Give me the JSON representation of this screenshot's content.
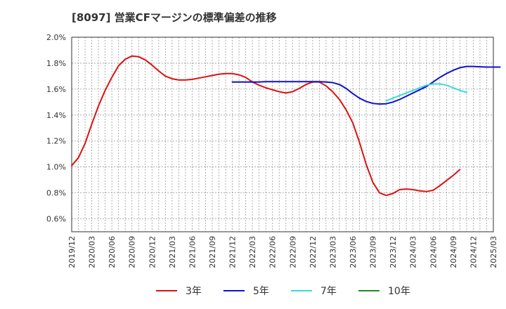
{
  "chart_data": {
    "type": "line",
    "title": "[8097]  営業CFマージンの標準偏差の推移",
    "xlabel": "",
    "ylabel": "",
    "ylim": [
      0.5,
      2.0
    ],
    "y_ticks": [
      0.6,
      0.8,
      1.0,
      1.2,
      1.4,
      1.6,
      1.8,
      2.0
    ],
    "y_tick_labels": [
      "0.6%",
      "0.8%",
      "1.0%",
      "1.2%",
      "1.4%",
      "1.6%",
      "1.8%",
      "2.0%"
    ],
    "x_tick_labels": [
      "2019/12",
      "2020/03",
      "2020/06",
      "2020/09",
      "2020/12",
      "2021/03",
      "2021/06",
      "2021/09",
      "2021/12",
      "2022/03",
      "2022/06",
      "2022/09",
      "2022/12",
      "2023/03",
      "2023/06",
      "2023/09",
      "2023/12",
      "2024/03",
      "2024/06",
      "2024/09",
      "2024/12",
      "2025/03"
    ],
    "grid": true,
    "legend_position": "bottom",
    "series": [
      {
        "name": "3年",
        "color": "#dd1111",
        "values": [
          [
            0,
            1.01
          ],
          [
            1,
            1.07
          ],
          [
            2,
            1.18
          ],
          [
            3,
            1.33
          ],
          [
            4,
            1.47
          ],
          [
            5,
            1.59
          ],
          [
            6,
            1.69
          ],
          [
            7,
            1.78
          ],
          [
            8,
            1.83
          ],
          [
            9,
            1.855
          ],
          [
            10,
            1.85
          ],
          [
            11,
            1.825
          ],
          [
            12,
            1.785
          ],
          [
            13,
            1.74
          ],
          [
            14,
            1.7
          ],
          [
            15,
            1.68
          ],
          [
            16,
            1.67
          ],
          [
            17,
            1.67
          ],
          [
            18,
            1.675
          ],
          [
            19,
            1.685
          ],
          [
            20,
            1.695
          ],
          [
            21,
            1.705
          ],
          [
            22,
            1.715
          ],
          [
            23,
            1.72
          ],
          [
            24,
            1.72
          ],
          [
            25,
            1.71
          ],
          [
            26,
            1.69
          ],
          [
            27,
            1.655
          ],
          [
            28,
            1.63
          ],
          [
            29,
            1.61
          ],
          [
            30,
            1.595
          ],
          [
            31,
            1.58
          ],
          [
            32,
            1.57
          ],
          [
            33,
            1.58
          ],
          [
            34,
            1.605
          ],
          [
            35,
            1.635
          ],
          [
            36,
            1.655
          ],
          [
            37,
            1.655
          ],
          [
            38,
            1.625
          ],
          [
            39,
            1.58
          ],
          [
            40,
            1.52
          ],
          [
            41,
            1.44
          ],
          [
            42,
            1.34
          ],
          [
            43,
            1.19
          ],
          [
            44,
            1.02
          ],
          [
            45,
            0.88
          ],
          [
            46,
            0.8
          ],
          [
            47,
            0.78
          ],
          [
            48,
            0.795
          ],
          [
            49,
            0.825
          ],
          [
            50,
            0.83
          ],
          [
            51,
            0.825
          ],
          [
            52,
            0.815
          ],
          [
            53,
            0.81
          ],
          [
            54,
            0.82
          ],
          [
            55,
            0.855
          ],
          [
            56,
            0.895
          ],
          [
            57,
            0.935
          ],
          [
            58,
            0.98
          ]
        ]
      },
      {
        "name": "5年",
        "color": "#1111cc",
        "values": [
          [
            24,
            1.655
          ],
          [
            25,
            1.655
          ],
          [
            26,
            1.655
          ],
          [
            27,
            1.655
          ],
          [
            28,
            1.655
          ],
          [
            29,
            1.657
          ],
          [
            30,
            1.657
          ],
          [
            31,
            1.657
          ],
          [
            32,
            1.657
          ],
          [
            33,
            1.657
          ],
          [
            34,
            1.657
          ],
          [
            35,
            1.658
          ],
          [
            36,
            1.658
          ],
          [
            37,
            1.658
          ],
          [
            38,
            1.655
          ],
          [
            39,
            1.65
          ],
          [
            40,
            1.635
          ],
          [
            41,
            1.605
          ],
          [
            42,
            1.565
          ],
          [
            43,
            1.53
          ],
          [
            44,
            1.505
          ],
          [
            45,
            1.49
          ],
          [
            46,
            1.485
          ],
          [
            47,
            1.487
          ],
          [
            48,
            1.5
          ],
          [
            49,
            1.52
          ],
          [
            50,
            1.545
          ],
          [
            51,
            1.57
          ],
          [
            52,
            1.595
          ],
          [
            53,
            1.62
          ],
          [
            54,
            1.655
          ],
          [
            55,
            1.69
          ],
          [
            56,
            1.72
          ],
          [
            57,
            1.745
          ],
          [
            58,
            1.765
          ],
          [
            59,
            1.775
          ],
          [
            60,
            1.775
          ],
          [
            61,
            1.772
          ],
          [
            62,
            1.77
          ],
          [
            63,
            1.77
          ],
          [
            64,
            1.77
          ]
        ]
      },
      {
        "name": "7年",
        "color": "#33dddd",
        "values": [
          [
            47,
            1.51
          ],
          [
            48,
            1.53
          ],
          [
            49,
            1.55
          ],
          [
            50,
            1.57
          ],
          [
            51,
            1.59
          ],
          [
            52,
            1.61
          ],
          [
            53,
            1.63
          ],
          [
            54,
            1.64
          ],
          [
            55,
            1.64
          ],
          [
            56,
            1.63
          ],
          [
            57,
            1.61
          ],
          [
            58,
            1.59
          ],
          [
            59,
            1.575
          ]
        ]
      },
      {
        "name": "10年",
        "color": "#228b22",
        "values": []
      }
    ]
  }
}
